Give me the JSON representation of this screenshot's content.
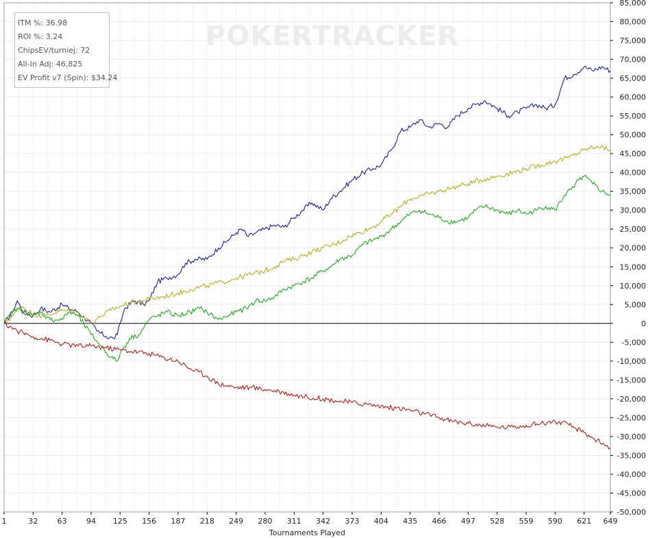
{
  "watermark": "POKERTRACKER",
  "stats": [
    "ITM %: 36.98",
    "ROI %: 3.24",
    "ChipsEV/turniej: 72",
    "All-In Adj: 46,825",
    "EV Profit v7 (Spin): $34.24"
  ],
  "chart_data": {
    "type": "line",
    "xlabel": "Tournaments Played",
    "ylabel": "",
    "xlim": [
      1,
      649
    ],
    "ylim": [
      -50000,
      85000
    ],
    "x_ticks": [
      "1",
      "32",
      "63",
      "94",
      "125",
      "156",
      "187",
      "218",
      "249",
      "280",
      "311",
      "342",
      "373",
      "404",
      "435",
      "466",
      "497",
      "528",
      "559",
      "590",
      "621",
      "649"
    ],
    "y_ticks": [
      "85,000",
      "80,000",
      "75,000",
      "70,000",
      "65,000",
      "60,000",
      "55,000",
      "50,000",
      "45,000",
      "40,000",
      "35,000",
      "30,000",
      "25,000",
      "20,000",
      "15,000",
      "10,000",
      "5,000",
      "0",
      "-5,000",
      "-10,000",
      "-15,000",
      "-20,000",
      "-25,000",
      "-30,000",
      "-35,000",
      "-40,000",
      "-45,000",
      "-50,000"
    ],
    "grid": true,
    "series": [
      {
        "color": "#1c1f8a",
        "x": [
          1,
          10,
          15,
          22,
          32,
          40,
          50,
          63,
          70,
          80,
          94,
          100,
          110,
          118,
          122,
          125,
          130,
          140,
          150,
          156,
          165,
          175,
          187,
          195,
          205,
          218,
          230,
          240,
          249,
          255,
          262,
          270,
          280,
          290,
          300,
          311,
          320,
          330,
          342,
          350,
          360,
          373,
          385,
          395,
          404,
          415,
          425,
          435,
          445,
          455,
          466,
          475,
          485,
          497,
          505,
          515,
          528,
          540,
          550,
          559,
          570,
          580,
          590,
          600,
          610,
          621,
          630,
          640,
          649
        ],
        "values": [
          0,
          3000,
          6000,
          3000,
          2000,
          4000,
          3000,
          5000,
          4000,
          3000,
          0,
          -2000,
          -3500,
          -4000,
          -3000,
          0,
          4000,
          6000,
          5000,
          6000,
          11000,
          12000,
          13000,
          16000,
          17000,
          17000,
          20000,
          22000,
          24000,
          25000,
          23000,
          24000,
          25000,
          26000,
          25500,
          28000,
          30000,
          32000,
          30000,
          33000,
          35000,
          38000,
          40000,
          41000,
          42000,
          46000,
          51000,
          52000,
          54000,
          52000,
          53000,
          52000,
          55000,
          57000,
          58000,
          59000,
          57000,
          55000,
          56000,
          57000,
          58000,
          57000,
          58000,
          65000,
          66000,
          68000,
          67000,
          68000,
          67000
        ]
      },
      {
        "color": "#b0ae20",
        "x": [
          1,
          10,
          20,
          32,
          45,
          63,
          80,
          94,
          105,
          115,
          125,
          135,
          150,
          156,
          170,
          187,
          200,
          218,
          235,
          249,
          265,
          280,
          290,
          300,
          311,
          320,
          330,
          342,
          355,
          370,
          380,
          395,
          404,
          415,
          425,
          435,
          450,
          466,
          480,
          497,
          510,
          528,
          545,
          559,
          575,
          590,
          605,
          621,
          635,
          649
        ],
        "values": [
          0,
          2000,
          4500,
          2500,
          2000,
          3500,
          3000,
          0,
          2000,
          3500,
          4500,
          5500,
          6000,
          6500,
          7000,
          8000,
          9000,
          10000,
          11000,
          12000,
          13000,
          14000,
          15000,
          16500,
          17000,
          18000,
          19000,
          20000,
          21000,
          23000,
          24000,
          25500,
          27000,
          29000,
          31000,
          33000,
          34000,
          35000,
          36000,
          37000,
          38000,
          39000,
          40000,
          41000,
          42000,
          43000,
          44000,
          46000,
          47000,
          46000
        ]
      },
      {
        "color": "#1fa51f",
        "x": [
          1,
          10,
          15,
          22,
          32,
          40,
          50,
          63,
          70,
          80,
          94,
          105,
          115,
          122,
          125,
          135,
          145,
          156,
          165,
          175,
          187,
          200,
          210,
          218,
          230,
          240,
          249,
          260,
          270,
          280,
          290,
          300,
          311,
          320,
          330,
          342,
          350,
          360,
          373,
          385,
          395,
          404,
          415,
          425,
          435,
          445,
          455,
          466,
          475,
          485,
          497,
          505,
          515,
          528,
          540,
          550,
          559,
          570,
          580,
          590,
          600,
          610,
          615,
          621,
          630,
          640,
          649
        ],
        "values": [
          0,
          3000,
          4000,
          3000,
          2000,
          3000,
          1000,
          1000,
          3000,
          2000,
          -3000,
          -6000,
          -9000,
          -10000,
          -8000,
          -4000,
          -3000,
          1000,
          2000,
          3000,
          2000,
          3000,
          4000,
          3000,
          1000,
          2000,
          3000,
          4000,
          6000,
          6000,
          7000,
          9000,
          10000,
          11000,
          12000,
          14000,
          15000,
          17000,
          18000,
          21000,
          22000,
          23000,
          25000,
          27000,
          29000,
          30000,
          29000,
          28000,
          27000,
          27000,
          28000,
          30000,
          31000,
          30000,
          29000,
          30000,
          29000,
          30000,
          31000,
          30000,
          34000,
          36000,
          38000,
          39000,
          37000,
          35000,
          34000
        ]
      },
      {
        "color": "#a51c1c",
        "x": [
          1,
          15,
          32,
          50,
          63,
          80,
          94,
          110,
          125,
          140,
          156,
          170,
          187,
          200,
          218,
          230,
          249,
          265,
          280,
          295,
          311,
          325,
          342,
          355,
          373,
          390,
          404,
          420,
          435,
          450,
          466,
          480,
          497,
          510,
          528,
          545,
          559,
          575,
          590,
          605,
          621,
          635,
          649
        ],
        "values": [
          0,
          -2000,
          -3500,
          -4500,
          -5500,
          -6000,
          -6000,
          -6500,
          -7000,
          -7500,
          -8000,
          -9000,
          -10000,
          -12000,
          -14000,
          -16000,
          -17000,
          -17000,
          -17500,
          -18000,
          -19000,
          -19500,
          -20000,
          -20500,
          -21000,
          -21500,
          -22000,
          -22500,
          -23000,
          -24000,
          -25000,
          -26000,
          -26500,
          -27000,
          -27500,
          -27500,
          -27000,
          -26500,
          -26000,
          -27000,
          -29000,
          -31000,
          -33000
        ]
      }
    ]
  }
}
